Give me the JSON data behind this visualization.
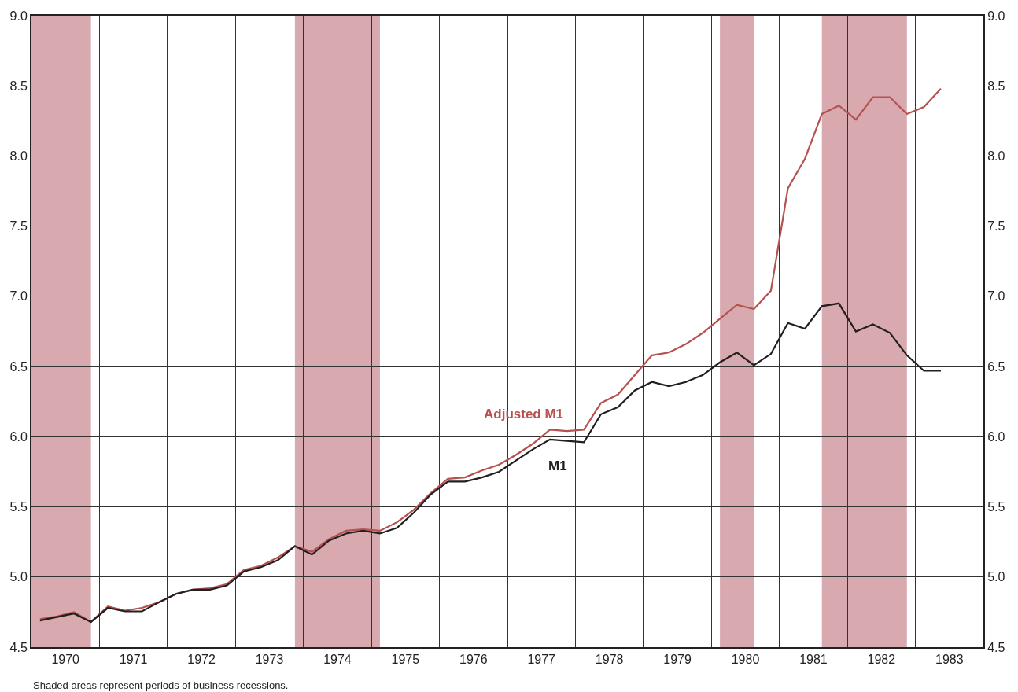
{
  "chart_data": {
    "type": "line",
    "x": [
      1970.125,
      1970.375,
      1970.625,
      1970.875,
      1971.125,
      1971.375,
      1971.625,
      1971.875,
      1972.125,
      1972.375,
      1972.625,
      1972.875,
      1973.125,
      1973.375,
      1973.625,
      1973.875,
      1974.125,
      1974.375,
      1974.625,
      1974.875,
      1975.125,
      1975.375,
      1975.625,
      1975.875,
      1976.125,
      1976.375,
      1976.625,
      1976.875,
      1977.125,
      1977.375,
      1977.625,
      1977.875,
      1978.125,
      1978.375,
      1978.625,
      1978.875,
      1979.125,
      1979.375,
      1979.625,
      1979.875,
      1980.125,
      1980.375,
      1980.625,
      1980.875,
      1981.125,
      1981.375,
      1981.625,
      1981.875,
      1982.125,
      1982.375,
      1982.625,
      1982.875,
      1983.125,
      1983.375
    ],
    "series": [
      {
        "name": "Adjusted M1",
        "color": "#b5524f",
        "values": [
          4.7,
          4.72,
          4.75,
          4.68,
          4.79,
          4.76,
          4.78,
          4.82,
          4.88,
          4.91,
          4.92,
          4.95,
          5.05,
          5.08,
          5.14,
          5.22,
          5.18,
          5.27,
          5.33,
          5.34,
          5.33,
          5.39,
          5.48,
          5.6,
          5.7,
          5.71,
          5.76,
          5.8,
          5.87,
          5.95,
          6.05,
          6.04,
          6.05,
          6.24,
          6.3,
          6.44,
          6.58,
          6.6,
          6.66,
          6.74,
          6.84,
          6.94,
          6.91,
          7.04,
          7.77,
          7.98,
          8.3,
          8.36,
          8.26,
          8.42,
          8.42,
          8.3,
          8.35,
          8.48
        ]
      },
      {
        "name": "M1",
        "color": "#231f20",
        "values": [
          4.69,
          4.715,
          4.74,
          4.68,
          4.78,
          4.755,
          4.755,
          4.82,
          4.88,
          4.91,
          4.91,
          4.94,
          5.04,
          5.07,
          5.12,
          5.22,
          5.16,
          5.26,
          5.31,
          5.33,
          5.31,
          5.35,
          5.46,
          5.59,
          5.68,
          5.68,
          5.71,
          5.75,
          5.83,
          5.91,
          5.98,
          5.97,
          5.96,
          6.16,
          6.21,
          6.33,
          6.39,
          6.36,
          6.39,
          6.44,
          6.53,
          6.6,
          6.51,
          6.59,
          6.81,
          6.77,
          6.93,
          6.95,
          6.75,
          6.8,
          6.74,
          6.58,
          6.47,
          6.47
        ]
      }
    ],
    "xlim": [
      1970,
      1984
    ],
    "xticks": [
      {
        "value": 1970,
        "label": null
      },
      {
        "value": 1970.5,
        "label": "1970"
      },
      {
        "value": 1971,
        "label": null
      },
      {
        "value": 1971.5,
        "label": "1971"
      },
      {
        "value": 1972,
        "label": null
      },
      {
        "value": 1972.5,
        "label": "1972"
      },
      {
        "value": 1973,
        "label": null
      },
      {
        "value": 1973.5,
        "label": "1973"
      },
      {
        "value": 1974,
        "label": null
      },
      {
        "value": 1974.5,
        "label": "1974"
      },
      {
        "value": 1975,
        "label": null
      },
      {
        "value": 1975.5,
        "label": "1975"
      },
      {
        "value": 1976,
        "label": null
      },
      {
        "value": 1976.5,
        "label": "1976"
      },
      {
        "value": 1977,
        "label": null
      },
      {
        "value": 1977.5,
        "label": "1977"
      },
      {
        "value": 1978,
        "label": null
      },
      {
        "value": 1978.5,
        "label": "1978"
      },
      {
        "value": 1979,
        "label": null
      },
      {
        "value": 1979.5,
        "label": "1979"
      },
      {
        "value": 1980,
        "label": null
      },
      {
        "value": 1980.5,
        "label": "1980"
      },
      {
        "value": 1981,
        "label": null
      },
      {
        "value": 1981.5,
        "label": "1981"
      },
      {
        "value": 1982,
        "label": null
      },
      {
        "value": 1982.5,
        "label": "1982"
      },
      {
        "value": 1983,
        "label": null
      },
      {
        "value": 1983.5,
        "label": "1983"
      },
      {
        "value": 1984,
        "label": null
      }
    ],
    "ylim": [
      4.5,
      9.0
    ],
    "yticks": [
      {
        "value": 4.5,
        "label": "4.5"
      },
      {
        "value": 5,
        "label": "5.0"
      },
      {
        "value": 5.5,
        "label": "5.5"
      },
      {
        "value": 6,
        "label": "6.0"
      },
      {
        "value": 6.5,
        "label": "6.5"
      },
      {
        "value": 7,
        "label": "7.0"
      },
      {
        "value": 7.5,
        "label": "7.5"
      },
      {
        "value": 8,
        "label": "8.0"
      },
      {
        "value": 8.5,
        "label": "8.5"
      },
      {
        "value": 9,
        "label": "9.0"
      }
    ],
    "y2lim": [
      4.5,
      9.0
    ],
    "y2ticks": [
      {
        "value": 4.5,
        "label": "4.5"
      },
      {
        "value": 5,
        "label": "5.0"
      },
      {
        "value": 5.5,
        "label": "5.5"
      },
      {
        "value": 6,
        "label": "6.0"
      },
      {
        "value": 6.5,
        "label": "6.5"
      },
      {
        "value": 7,
        "label": "7.0"
      },
      {
        "value": 7.5,
        "label": "7.5"
      },
      {
        "value": 8,
        "label": "8.0"
      },
      {
        "value": 8.5,
        "label": "8.5"
      },
      {
        "value": 9,
        "label": "9.0"
      }
    ],
    "bands": [
      {
        "axis": "x",
        "from": 1970,
        "to": 1970.875,
        "color": "#d9a9b0"
      },
      {
        "axis": "x",
        "from": 1973.875,
        "to": 1975.125,
        "color": "#d9a9b0"
      },
      {
        "axis": "x",
        "from": 1980.125,
        "to": 1980.625,
        "color": "#d9a9b0"
      },
      {
        "axis": "x",
        "from": 1981.625,
        "to": 1982.875,
        "color": "#d9a9b0"
      }
    ],
    "grid": true,
    "marker": "none",
    "line_style": "solid",
    "annotations": [
      "Shaded areas represent periods of business recessions."
    ]
  }
}
